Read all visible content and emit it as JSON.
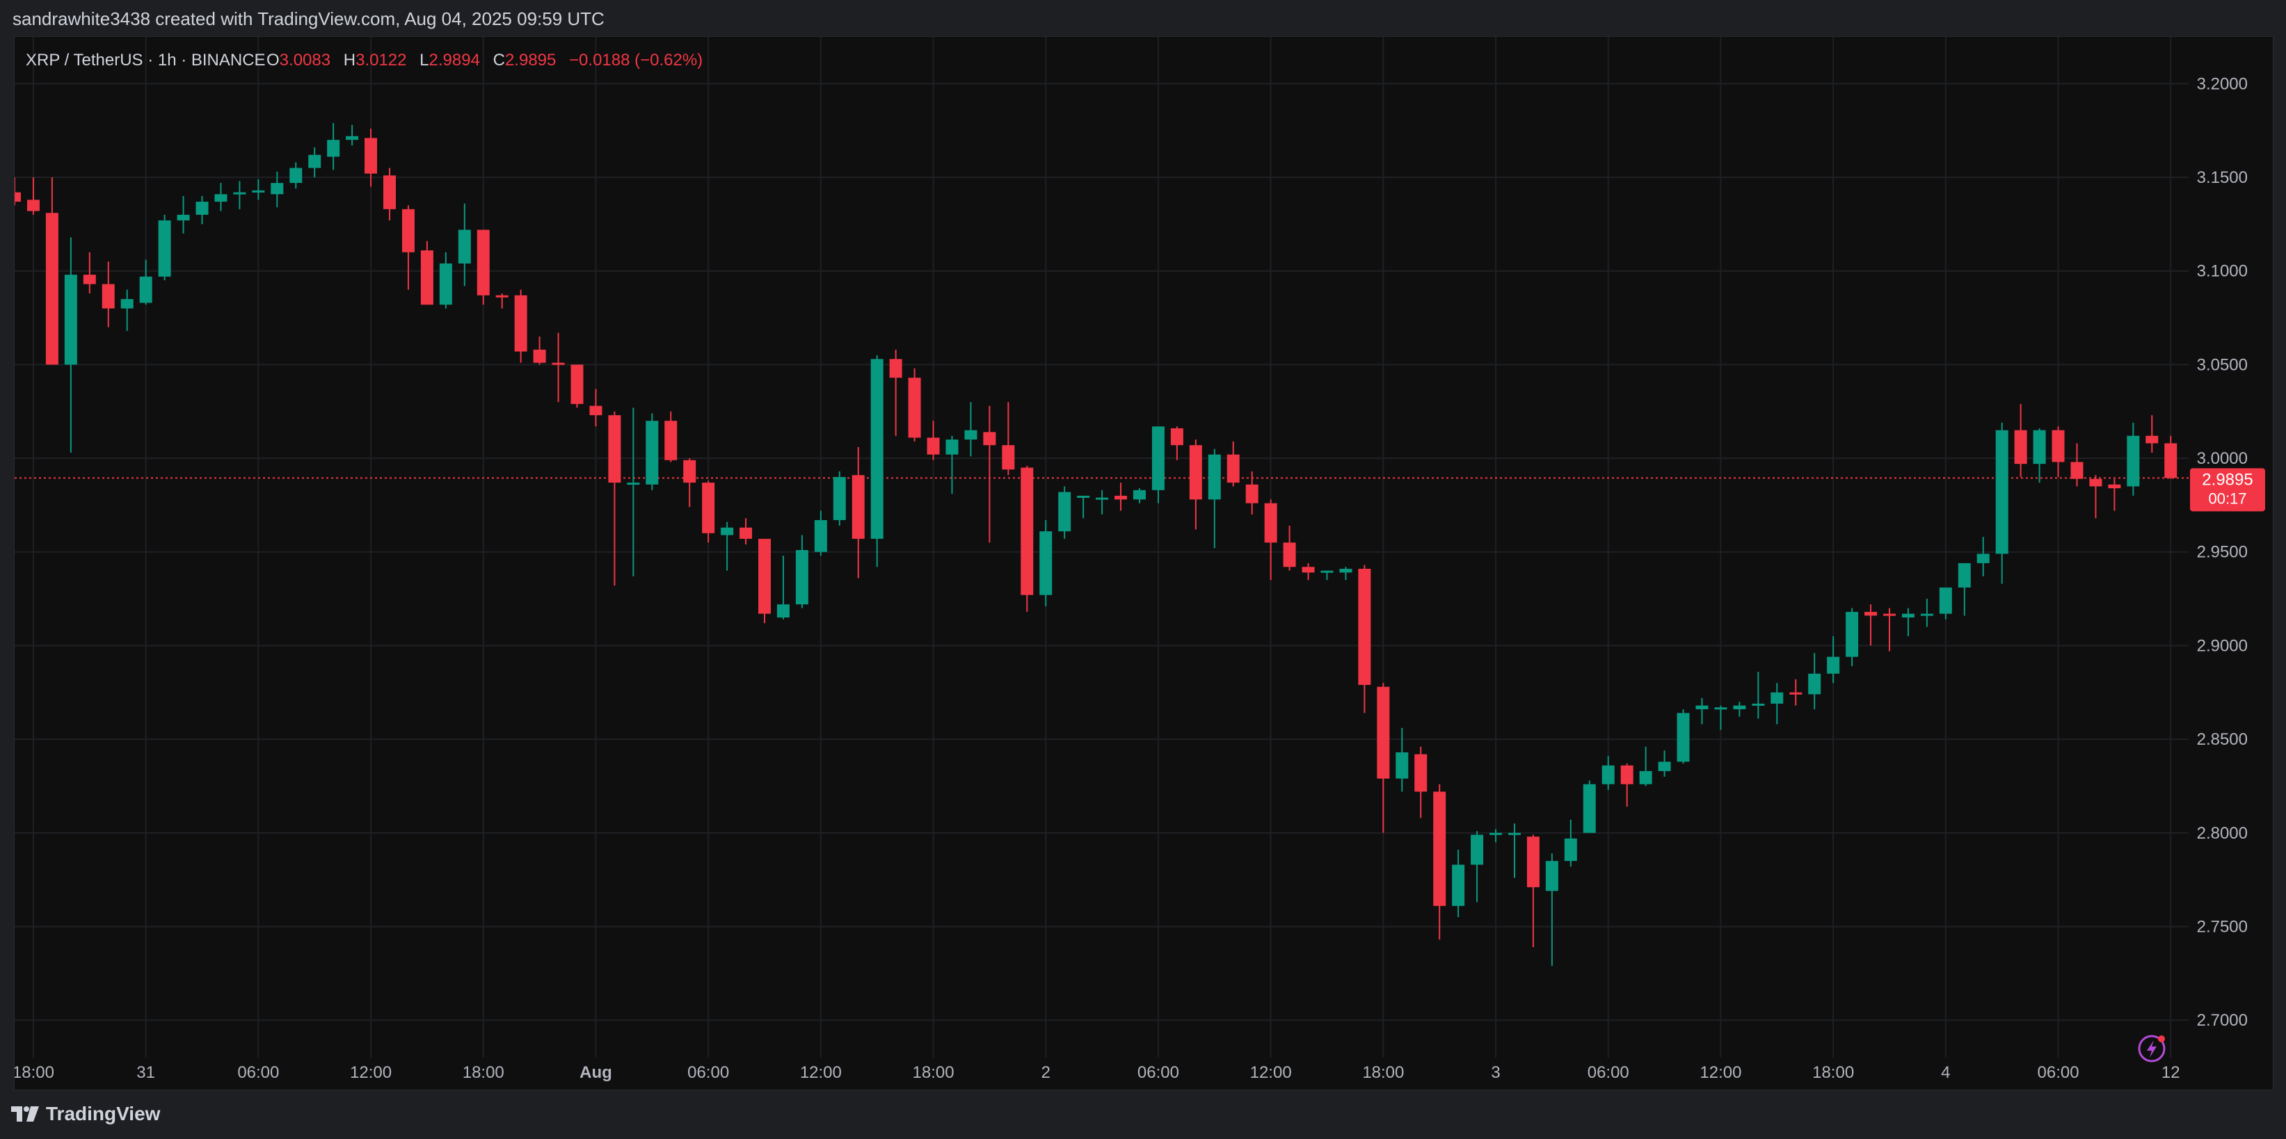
{
  "header": {
    "text": "sandrawhite3438 created with TradingView.com, Aug 04, 2025 09:59 UTC"
  },
  "legend": {
    "symbol": "XRP / TetherUS · 1h · BINANCE",
    "open_label": "O",
    "open": "3.0083",
    "high_label": "H",
    "high": "3.0122",
    "low_label": "L",
    "low": "2.9894",
    "close_label": "C",
    "close": "2.9895",
    "change": "−0.0188 (−0.62%)"
  },
  "price_tag": {
    "price": "2.9895",
    "countdown": "00:17"
  },
  "footer": {
    "logo_text": "TradingView"
  },
  "colors": {
    "up": "#089981",
    "down": "#f23645",
    "background": "#0f0f0f",
    "grid": "#1f2024",
    "axis_text": "#b2b5be",
    "price_tag": "#f23645"
  },
  "chart_data": {
    "type": "candlestick",
    "ylim": [
      2.68,
      3.225
    ],
    "grid": true,
    "y_ticks": [
      "3.2000",
      "3.1500",
      "3.1000",
      "3.0500",
      "3.0000",
      "2.9500",
      "2.9000",
      "2.8500",
      "2.8000",
      "2.7500",
      "2.7000"
    ],
    "x_ticks": [
      {
        "i": 1,
        "label": "18:00"
      },
      {
        "i": 7,
        "label": "31"
      },
      {
        "i": 13,
        "label": "06:00"
      },
      {
        "i": 19,
        "label": "12:00"
      },
      {
        "i": 25,
        "label": "18:00"
      },
      {
        "i": 31,
        "label": "Aug"
      },
      {
        "i": 37,
        "label": "06:00"
      },
      {
        "i": 43,
        "label": "12:00"
      },
      {
        "i": 49,
        "label": "18:00"
      },
      {
        "i": 55,
        "label": "2"
      },
      {
        "i": 61,
        "label": "06:00"
      },
      {
        "i": 67,
        "label": "12:00"
      },
      {
        "i": 73,
        "label": "18:00"
      },
      {
        "i": 79,
        "label": "3"
      },
      {
        "i": 85,
        "label": "06:00"
      },
      {
        "i": 91,
        "label": "12:00"
      },
      {
        "i": 97,
        "label": "18:00"
      },
      {
        "i": 103,
        "label": "4"
      },
      {
        "i": 109,
        "label": "06:00"
      },
      {
        "i": 115,
        "label": "12"
      }
    ],
    "ohlc": [
      [
        3.142,
        3.15,
        3.135,
        3.137
      ],
      [
        3.138,
        3.15,
        3.13,
        3.132
      ],
      [
        3.131,
        3.15,
        3.05,
        3.05
      ],
      [
        3.05,
        3.118,
        3.003,
        3.098
      ],
      [
        3.098,
        3.11,
        3.088,
        3.093
      ],
      [
        3.093,
        3.105,
        3.07,
        3.08
      ],
      [
        3.08,
        3.09,
        3.068,
        3.085
      ],
      [
        3.083,
        3.106,
        3.082,
        3.097
      ],
      [
        3.097,
        3.13,
        3.095,
        3.127
      ],
      [
        3.127,
        3.14,
        3.12,
        3.13
      ],
      [
        3.13,
        3.14,
        3.125,
        3.137
      ],
      [
        3.137,
        3.147,
        3.132,
        3.141
      ],
      [
        3.141,
        3.148,
        3.133,
        3.142
      ],
      [
        3.142,
        3.149,
        3.138,
        3.143
      ],
      [
        3.141,
        3.153,
        3.134,
        3.147
      ],
      [
        3.147,
        3.158,
        3.144,
        3.155
      ],
      [
        3.155,
        3.166,
        3.15,
        3.162
      ],
      [
        3.161,
        3.179,
        3.154,
        3.17
      ],
      [
        3.17,
        3.178,
        3.167,
        3.172
      ],
      [
        3.171,
        3.176,
        3.145,
        3.152
      ],
      [
        3.151,
        3.155,
        3.127,
        3.133
      ],
      [
        3.133,
        3.135,
        3.09,
        3.11
      ],
      [
        3.111,
        3.116,
        3.082,
        3.082
      ],
      [
        3.082,
        3.11,
        3.08,
        3.104
      ],
      [
        3.104,
        3.136,
        3.092,
        3.122
      ],
      [
        3.122,
        3.122,
        3.082,
        3.087
      ],
      [
        3.087,
        3.088,
        3.08,
        3.086
      ],
      [
        3.087,
        3.09,
        3.051,
        3.057
      ],
      [
        3.058,
        3.065,
        3.05,
        3.051
      ],
      [
        3.051,
        3.067,
        3.03,
        3.05
      ],
      [
        3.05,
        3.05,
        3.027,
        3.029
      ],
      [
        3.028,
        3.037,
        3.017,
        3.023
      ],
      [
        3.023,
        3.025,
        2.932,
        2.987
      ],
      [
        2.987,
        3.027,
        2.937,
        2.987
      ],
      [
        2.986,
        3.024,
        2.983,
        3.02
      ],
      [
        3.02,
        3.025,
        2.998,
        2.999
      ],
      [
        2.999,
        3.0,
        2.974,
        2.987
      ],
      [
        2.987,
        2.988,
        2.955,
        2.96
      ],
      [
        2.959,
        2.966,
        2.94,
        2.963
      ],
      [
        2.963,
        2.968,
        2.954,
        2.957
      ],
      [
        2.957,
        2.956,
        2.912,
        2.917
      ],
      [
        2.915,
        2.948,
        2.914,
        2.922
      ],
      [
        2.922,
        2.959,
        2.92,
        2.951
      ],
      [
        2.95,
        2.972,
        2.948,
        2.967
      ],
      [
        2.967,
        2.993,
        2.964,
        2.99
      ],
      [
        2.991,
        3.006,
        2.936,
        2.957
      ],
      [
        2.957,
        3.055,
        2.942,
        3.053
      ],
      [
        3.053,
        3.058,
        3.012,
        3.043
      ],
      [
        3.043,
        3.048,
        3.009,
        3.011
      ],
      [
        3.011,
        3.02,
        2.999,
        3.002
      ],
      [
        3.002,
        3.012,
        2.981,
        3.01
      ],
      [
        3.01,
        3.03,
        3.001,
        3.015
      ],
      [
        3.014,
        3.028,
        2.955,
        3.007
      ],
      [
        3.007,
        3.03,
        2.991,
        2.994
      ],
      [
        2.995,
        2.996,
        2.918,
        2.927
      ],
      [
        2.927,
        2.967,
        2.921,
        2.961
      ],
      [
        2.961,
        2.985,
        2.957,
        2.982
      ],
      [
        2.98,
        2.98,
        2.968,
        2.98
      ],
      [
        2.979,
        2.983,
        2.97,
        2.979
      ],
      [
        2.98,
        2.987,
        2.972,
        2.978
      ],
      [
        2.978,
        2.984,
        2.976,
        2.983
      ],
      [
        2.983,
        3.013,
        2.976,
        3.017
      ],
      [
        3.016,
        3.017,
        2.999,
        3.007
      ],
      [
        3.007,
        3.01,
        2.962,
        2.978
      ],
      [
        2.978,
        3.005,
        2.952,
        3.002
      ],
      [
        3.002,
        3.009,
        2.985,
        2.987
      ],
      [
        2.986,
        2.993,
        2.97,
        2.976
      ],
      [
        2.976,
        2.978,
        2.935,
        2.955
      ],
      [
        2.955,
        2.964,
        2.94,
        2.942
      ],
      [
        2.942,
        2.944,
        2.935,
        2.939
      ],
      [
        2.94,
        2.94,
        2.935,
        2.94
      ],
      [
        2.939,
        2.942,
        2.935,
        2.941
      ],
      [
        2.941,
        2.943,
        2.864,
        2.879
      ],
      [
        2.878,
        2.88,
        2.8,
        2.829
      ],
      [
        2.829,
        2.856,
        2.822,
        2.843
      ],
      [
        2.842,
        2.846,
        2.808,
        2.822
      ],
      [
        2.822,
        2.826,
        2.743,
        2.761
      ],
      [
        2.761,
        2.791,
        2.755,
        2.783
      ],
      [
        2.783,
        2.801,
        2.763,
        2.799
      ],
      [
        2.799,
        2.802,
        2.795,
        2.8
      ],
      [
        2.799,
        2.805,
        2.776,
        2.8
      ],
      [
        2.798,
        2.799,
        2.739,
        2.771
      ],
      [
        2.769,
        2.789,
        2.729,
        2.785
      ],
      [
        2.785,
        2.807,
        2.782,
        2.797
      ],
      [
        2.8,
        2.828,
        2.8,
        2.826
      ],
      [
        2.826,
        2.841,
        2.823,
        2.836
      ],
      [
        2.836,
        2.837,
        2.814,
        2.826
      ],
      [
        2.826,
        2.846,
        2.825,
        2.833
      ],
      [
        2.833,
        2.844,
        2.83,
        2.838
      ],
      [
        2.838,
        2.866,
        2.837,
        2.864
      ],
      [
        2.866,
        2.872,
        2.858,
        2.868
      ],
      [
        2.866,
        2.868,
        2.855,
        2.867
      ],
      [
        2.866,
        2.87,
        2.862,
        2.868
      ],
      [
        2.868,
        2.886,
        2.861,
        2.869
      ],
      [
        2.869,
        2.88,
        2.858,
        2.875
      ],
      [
        2.875,
        2.882,
        2.868,
        2.874
      ],
      [
        2.874,
        2.896,
        2.866,
        2.885
      ],
      [
        2.885,
        2.905,
        2.88,
        2.894
      ],
      [
        2.894,
        2.92,
        2.889,
        2.918
      ],
      [
        2.918,
        2.922,
        2.9,
        2.916
      ],
      [
        2.917,
        2.92,
        2.897,
        2.916
      ],
      [
        2.915,
        2.92,
        2.905,
        2.917
      ],
      [
        2.917,
        2.925,
        2.91,
        2.917
      ],
      [
        2.917,
        2.93,
        2.914,
        2.931
      ],
      [
        2.931,
        2.942,
        2.916,
        2.944
      ],
      [
        2.944,
        2.958,
        2.937,
        2.949
      ],
      [
        2.949,
        3.019,
        2.933,
        3.015
      ],
      [
        3.015,
        3.029,
        2.99,
        2.997
      ],
      [
        2.997,
        3.016,
        2.987,
        3.015
      ],
      [
        3.015,
        3.017,
        2.99,
        2.998
      ],
      [
        2.998,
        3.008,
        2.985,
        2.989
      ],
      [
        2.989,
        2.991,
        2.968,
        2.985
      ],
      [
        2.986,
        2.989,
        2.972,
        2.984
      ],
      [
        2.985,
        3.019,
        2.98,
        3.012
      ],
      [
        3.012,
        3.023,
        3.003,
        3.008
      ],
      [
        3.008,
        3.012,
        2.989,
        2.9895
      ]
    ]
  }
}
